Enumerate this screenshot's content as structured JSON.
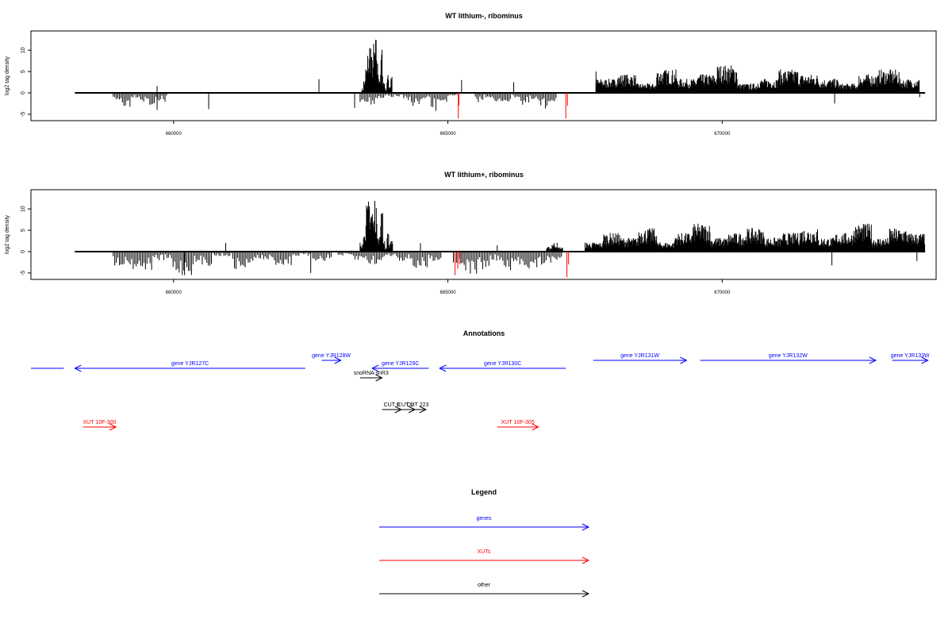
{
  "chart_data": [
    {
      "type": "bar",
      "title": "WT lithium-, ribominus",
      "xlabel": "",
      "ylabel": "log2 tag density",
      "xlim": [
        657400,
        673900
      ],
      "ylim": [
        -6.5,
        14.5
      ],
      "x_ticks": [
        "660000",
        "665000",
        "670000"
      ],
      "y_ticks": [
        "-5",
        "0",
        "5",
        "10"
      ],
      "grid": false,
      "colors": {
        "default": "#000000",
        "highlight": "#ff0000"
      },
      "clusters": [
        {
          "region": [
            663430,
            663990
          ],
          "values": [
            1,
            3,
            6,
            9,
            12,
            8,
            11,
            12,
            7,
            4,
            10,
            3,
            1,
            4,
            2,
            5
          ]
        },
        {
          "region": [
            667700,
            673600
          ],
          "values": [
            3,
            4,
            2,
            5,
            3,
            4,
            6,
            2,
            3,
            5,
            4,
            3,
            2,
            4,
            5,
            3
          ]
        }
      ],
      "neg_clusters": [
        {
          "region": [
            658900,
            659900
          ],
          "values": [
            -2,
            -3,
            -1,
            -2,
            -3,
            -2
          ]
        },
        {
          "region": [
            663400,
            664000
          ],
          "values": [
            -2,
            -3,
            -2,
            -1
          ]
        },
        {
          "region": [
            664000,
            665200
          ],
          "values": [
            -1,
            -2,
            -3,
            -2,
            -4,
            -2,
            -1
          ]
        },
        {
          "region": [
            665500,
            667000
          ],
          "values": [
            -2,
            -1,
            -3,
            -2,
            -1,
            -3,
            -2,
            -4,
            -2
          ]
        }
      ],
      "bars": [
        {
          "x": 659700,
          "y": 1.6
        },
        {
          "x": 662650,
          "y": 3.2
        },
        {
          "x": 665250,
          "y": 3
        },
        {
          "x": 666200,
          "y": 2.5
        },
        {
          "x": 667700,
          "y": 5
        },
        {
          "x": 659700,
          "y": -4
        },
        {
          "x": 660640,
          "y": -3.8
        },
        {
          "x": 663300,
          "y": -3.5
        },
        {
          "x": 672050,
          "y": -2.5
        },
        {
          "x": 673600,
          "y": -1
        }
      ],
      "highlight_bars": [
        {
          "x": 665190,
          "y": -6
        },
        {
          "x": 665200,
          "y": -3
        },
        {
          "x": 667150,
          "y": -6
        },
        {
          "x": 667180,
          "y": -3
        }
      ]
    },
    {
      "type": "bar",
      "title": "WT lithium+, ribominus",
      "xlabel": "",
      "ylabel": "log2 tag density",
      "xlim": [
        657400,
        673900
      ],
      "ylim": [
        -6.5,
        14.5
      ],
      "x_ticks": [
        "660000",
        "665000",
        "670000"
      ],
      "y_ticks": [
        "-5",
        "0",
        "5",
        "10"
      ],
      "grid": false,
      "colors": {
        "default": "#000000",
        "highlight": "#ff0000"
      },
      "clusters": [
        {
          "region": [
            663400,
            664000
          ],
          "values": [
            2,
            4,
            7,
            10,
            13,
            11,
            8,
            12,
            6,
            4,
            9,
            3,
            1,
            4,
            2,
            3
          ]
        },
        {
          "region": [
            666800,
            667100
          ],
          "values": [
            1,
            2,
            1
          ]
        },
        {
          "region": [
            667500,
            673700
          ],
          "values": [
            2,
            4,
            3,
            5,
            2,
            4,
            6,
            3,
            4,
            5,
            3,
            4,
            5,
            3,
            4,
            6,
            3,
            5,
            4
          ]
        }
      ],
      "neg_clusters": [
        {
          "region": [
            658900,
            662900
          ],
          "values": [
            -3,
            -4,
            -2,
            -5,
            -3,
            -1,
            -4,
            -2,
            -3,
            -1,
            -2
          ]
        },
        {
          "region": [
            663000,
            664900
          ],
          "values": [
            -1,
            -2,
            -3,
            -1,
            -2,
            -4,
            -2
          ]
        },
        {
          "region": [
            665100,
            667100
          ],
          "values": [
            -3,
            -5,
            -4,
            -2,
            -5,
            -3,
            -4,
            -3,
            -2
          ]
        }
      ],
      "bars": [
        {
          "x": 660950,
          "y": 2
        },
        {
          "x": 663600,
          "y": 2
        },
        {
          "x": 664500,
          "y": 2
        },
        {
          "x": 665900,
          "y": 1.5
        },
        {
          "x": 672000,
          "y": -3.2
        },
        {
          "x": 673550,
          "y": -2.2
        },
        {
          "x": 660200,
          "y": -5.5
        },
        {
          "x": 662500,
          "y": -5
        }
      ],
      "highlight_bars": [
        {
          "x": 665130,
          "y": -5.5
        },
        {
          "x": 665180,
          "y": -4
        },
        {
          "x": 665220,
          "y": -3
        },
        {
          "x": 667170,
          "y": -6
        },
        {
          "x": 667200,
          "y": -3
        }
      ]
    }
  ],
  "annotations": {
    "title": "Annotations",
    "items": [
      {
        "label": "",
        "color": "#0000ff",
        "start": 657400,
        "end": 658000,
        "lane": 1,
        "dir": "none"
      },
      {
        "label": "gene YJR127C",
        "color": "#0000ff",
        "start": 658200,
        "end": 662400,
        "lane": 1,
        "dir": "left"
      },
      {
        "label": "gene YJR128W",
        "color": "#0000ff",
        "start": 662700,
        "end": 663050,
        "lane": 0,
        "dir": "right"
      },
      {
        "label": "snoRNA snR3",
        "color": "#000000",
        "start": 663400,
        "end": 663800,
        "lane": 2,
        "dir": "right"
      },
      {
        "label": "gene YJR129C",
        "color": "#0000ff",
        "start": 663620,
        "end": 664650,
        "lane": 1,
        "dir": "left"
      },
      {
        "label": "gene YJR130C",
        "color": "#0000ff",
        "start": 664850,
        "end": 667150,
        "lane": 1,
        "dir": "left"
      },
      {
        "label": "gene YJR131W",
        "color": "#0000ff",
        "start": 667650,
        "end": 669350,
        "lane": 0,
        "dir": "right"
      },
      {
        "label": "gene YJR132W",
        "color": "#0000ff",
        "start": 669600,
        "end": 672800,
        "lane": 0,
        "dir": "right"
      },
      {
        "label": "gene YJR133W",
        "color": "#0000ff",
        "start": 673100,
        "end": 673750,
        "lane": 0,
        "dir": "right"
      },
      {
        "label": "CUT 0",
        "color": "#000000",
        "start": 663800,
        "end": 664150,
        "lane": 3,
        "dir": "right"
      },
      {
        "label": "CUT 0",
        "color": "#000000",
        "start": 664050,
        "end": 664400,
        "lane": 3,
        "dir": "right"
      },
      {
        "label": "CUT 223",
        "color": "#000000",
        "start": 664300,
        "end": 664600,
        "lane": 3,
        "dir": "right"
      },
      {
        "label": "XUT 10F-300",
        "color": "#ff0000",
        "start": 658350,
        "end": 658950,
        "lane": 4,
        "dir": "right"
      },
      {
        "label": "XUT 10F-305",
        "color": "#ff0000",
        "start": 665900,
        "end": 666650,
        "lane": 4,
        "dir": "right"
      }
    ]
  },
  "legend": {
    "title": "Legend",
    "items": [
      {
        "label": "genes",
        "color": "#0000ff"
      },
      {
        "label": "XUTs",
        "color": "#ff0000"
      },
      {
        "label": "other",
        "color": "#000000"
      }
    ]
  }
}
